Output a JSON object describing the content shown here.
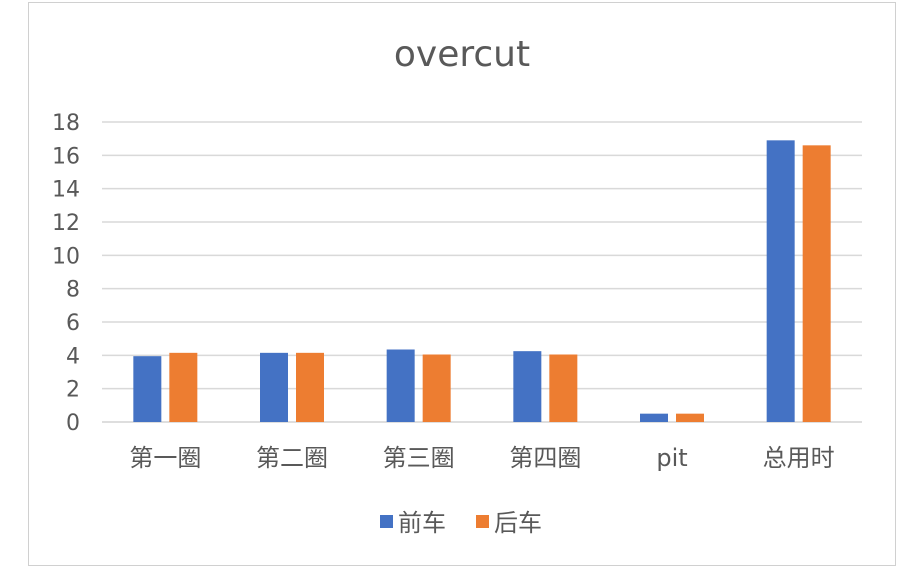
{
  "chart_data": {
    "type": "bar",
    "title": "overcut",
    "categories": [
      "第一圈",
      "第二圈",
      "第三圈",
      "第四圈",
      "pit",
      "总用时"
    ],
    "series": [
      {
        "name": "前车",
        "color": "#4472c4",
        "values": [
          3.95,
          4.15,
          4.35,
          4.25,
          0.5,
          16.9
        ]
      },
      {
        "name": "后车",
        "color": "#ed7d31",
        "values": [
          4.15,
          4.15,
          4.05,
          4.05,
          0.5,
          16.6
        ]
      }
    ],
    "ylim": [
      0,
      18
    ],
    "yticks": [
      "0",
      "2",
      "4",
      "6",
      "8",
      "10",
      "12",
      "14",
      "16",
      "18"
    ],
    "grid": true,
    "legend_position": "bottom"
  }
}
